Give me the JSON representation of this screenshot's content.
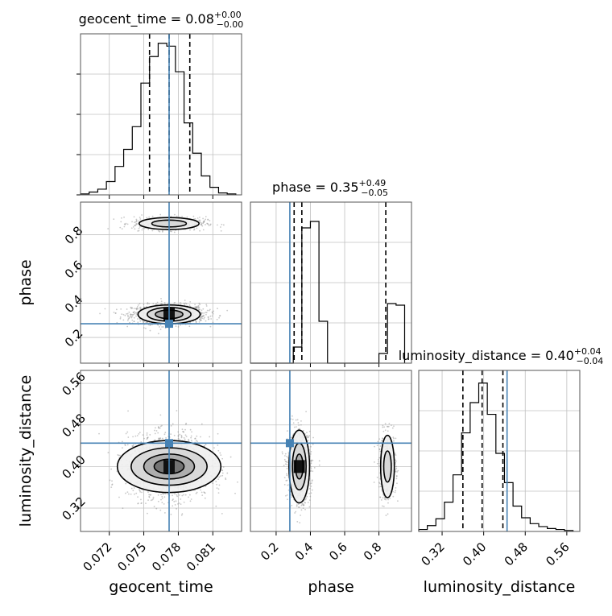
{
  "chart_data": {
    "type": "corner",
    "parameters": [
      "geocent_time",
      "phase",
      "luminosity_distance"
    ],
    "injection": {
      "geocent_time": 0.0772,
      "phase": 0.28,
      "luminosity_distance": 0.445
    },
    "panels": [
      {
        "kind": "histogram",
        "row": 0,
        "col": 0,
        "title": {
          "main": "geocent_time = 0.08",
          "sup": "+0.00",
          "sub": "−0.00"
        },
        "x": "geocent_time",
        "xlim": [
          0.0695,
          0.0835
        ],
        "quantiles": [
          0.0755,
          0.0772,
          0.079
        ],
        "bins": [
          0.0695,
          0.07025,
          0.071,
          0.07175,
          0.0725,
          0.07325,
          0.074,
          0.07475,
          0.0755,
          0.07625,
          0.077,
          0.07775,
          0.0785,
          0.07925,
          0.08,
          0.08075,
          0.0815,
          0.08225,
          0.083
        ],
        "counts": [
          1,
          3,
          6,
          14,
          30,
          48,
          72,
          118,
          146,
          160,
          157,
          130,
          76,
          44,
          20,
          8,
          2,
          1
        ],
        "ymax": 170
      },
      {
        "kind": "scatter",
        "row": 1,
        "col": 0,
        "x": "geocent_time",
        "y": "phase",
        "xlim": [
          0.0695,
          0.0835
        ],
        "ylim": [
          0.05,
          0.99
        ],
        "clusters": [
          {
            "cx": 0.0772,
            "cy": 0.335,
            "sx": 0.0016,
            "sy": 0.028,
            "n": 1300,
            "core": 0.0772
          },
          {
            "cx": 0.0772,
            "cy": 0.865,
            "sx": 0.0016,
            "sy": 0.02,
            "n": 500
          }
        ],
        "contours": [
          {
            "cx": 0.0772,
            "cy": 0.335,
            "rx": [
              0.0012,
              0.0019,
              0.0027
            ],
            "ry": [
              0.025,
              0.04,
              0.055
            ]
          },
          {
            "cx": 0.0772,
            "cy": 0.865,
            "rx": [
              0.0015,
              0.0026
            ],
            "ry": [
              0.02,
              0.035
            ]
          }
        ]
      },
      {
        "kind": "histogram",
        "row": 1,
        "col": 1,
        "title": {
          "main": "phase = 0.35",
          "sup": "+0.49",
          "sub": "−0.05"
        },
        "x": "phase",
        "xlim": [
          0.05,
          0.99
        ],
        "quantiles": [
          0.305,
          0.35,
          0.84
        ],
        "bins": [
          0.05,
          0.1,
          0.15,
          0.2,
          0.25,
          0.3,
          0.35,
          0.4,
          0.45,
          0.5,
          0.55,
          0.6,
          0.65,
          0.7,
          0.75,
          0.8,
          0.85,
          0.9,
          0.95
        ],
        "counts": [
          0,
          0,
          0,
          0,
          0,
          0.1,
          0.84,
          0.88,
          0.26,
          0,
          0,
          0,
          0,
          0,
          0,
          0.06,
          0.37,
          0.36
        ],
        "ymax": 1.0
      },
      {
        "kind": "scatter",
        "row": 2,
        "col": 0,
        "x": "geocent_time",
        "y": "luminosity_distance",
        "xlim": [
          0.0695,
          0.0835
        ],
        "ylim": [
          0.275,
          0.585
        ],
        "clusters": [
          {
            "cx": 0.0772,
            "cy": 0.4,
            "sx": 0.0018,
            "sy": 0.03,
            "n": 1800,
            "core": 0.0772
          }
        ],
        "contours": [
          {
            "cx": 0.0772,
            "cy": 0.4,
            "rx": [
              0.0013,
              0.0022,
              0.0033,
              0.0045
            ],
            "ry": [
              0.014,
              0.024,
              0.036,
              0.05
            ]
          }
        ]
      },
      {
        "kind": "scatter",
        "row": 2,
        "col": 1,
        "x": "phase",
        "y": "luminosity_distance",
        "xlim": [
          0.05,
          0.99
        ],
        "ylim": [
          0.275,
          0.585
        ],
        "clusters": [
          {
            "cx": 0.335,
            "cy": 0.4,
            "sx": 0.033,
            "sy": 0.032,
            "n": 1300,
            "core": 0.335
          },
          {
            "cx": 0.85,
            "cy": 0.4,
            "sx": 0.025,
            "sy": 0.032,
            "n": 500
          }
        ],
        "contours": [
          {
            "cx": 0.335,
            "cy": 0.4,
            "rx": [
              0.022,
              0.04,
              0.06
            ],
            "ry": [
              0.024,
              0.045,
              0.07
            ]
          },
          {
            "cx": 0.85,
            "cy": 0.4,
            "rx": [
              0.022,
              0.04
            ],
            "ry": [
              0.03,
              0.06
            ]
          }
        ]
      },
      {
        "kind": "histogram",
        "row": 2,
        "col": 2,
        "title": {
          "main": "luminosity_distance = 0.40",
          "sup": "+0.04",
          "sub": "−0.04"
        },
        "x": "luminosity_distance",
        "xlim": [
          0.275,
          0.585
        ],
        "quantiles": [
          0.36,
          0.397,
          0.437
        ],
        "bins": [
          0.275,
          0.2915,
          0.308,
          0.3245,
          0.341,
          0.3575,
          0.374,
          0.3905,
          0.407,
          0.4235,
          0.44,
          0.4565,
          0.473,
          0.4895,
          0.506,
          0.5225,
          0.539,
          0.5555,
          0.572
        ],
        "counts": [
          2,
          6,
          13,
          30,
          58,
          101,
          132,
          152,
          120,
          80,
          50,
          26,
          14,
          8,
          5,
          3,
          2,
          1
        ],
        "ymax": 165
      }
    ],
    "axes": {
      "geocent_time": {
        "label": "geocent_time",
        "ticks": [
          0.072,
          0.075,
          0.078,
          0.081
        ],
        "tick_labels": [
          "0.072",
          "0.075",
          "0.078",
          "0.081"
        ]
      },
      "phase": {
        "label": "phase",
        "ticks": [
          0.2,
          0.4,
          0.6,
          0.8
        ],
        "tick_labels": [
          "0.2",
          "0.4",
          "0.6",
          "0.8"
        ]
      },
      "luminosity_distance": {
        "label": "luminosity_distance",
        "ticks": [
          0.32,
          0.4,
          0.48,
          0.56
        ],
        "tick_labels": [
          "0.32",
          "0.40",
          "0.48",
          "0.56"
        ]
      }
    },
    "grid": true,
    "colors": {
      "truth": "#4682b4",
      "hist": "#000000",
      "points": "#888888",
      "frame": "#555555",
      "grid": "#c0c0c0"
    }
  }
}
